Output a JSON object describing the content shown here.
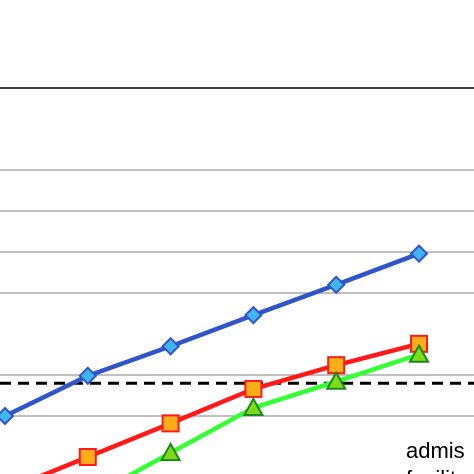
{
  "chart_data": {
    "type": "line",
    "title": "",
    "xlabel": "",
    "ylabel": "",
    "grid": true,
    "x": [
      1,
      2,
      3,
      4,
      5,
      6
    ],
    "series": [
      {
        "color": "#2f55c8",
        "fill": "#3fb6ef",
        "marker": "diamond",
        "values": [
          20.0,
          24.9,
          28.5,
          32.3,
          36.0,
          39.8
        ]
      },
      {
        "color": "#ff1a1a",
        "fill": "#ffae1a",
        "marker": "square",
        "values": [
          null,
          15.0,
          19.1,
          23.3,
          26.2,
          28.8
        ]
      },
      {
        "color": "#33ff33",
        "fill": "#7fdb1a",
        "marker": "triangle",
        "values": [
          null,
          null,
          15.5,
          21.0,
          24.2,
          27.5
        ]
      }
    ],
    "reference_line": {
      "value": 24.0,
      "style": "dashed",
      "color": "#000000"
    },
    "ylim": [
      15,
      64
    ]
  },
  "legend": {
    "line1": "admis",
    "line2": "facilit"
  }
}
